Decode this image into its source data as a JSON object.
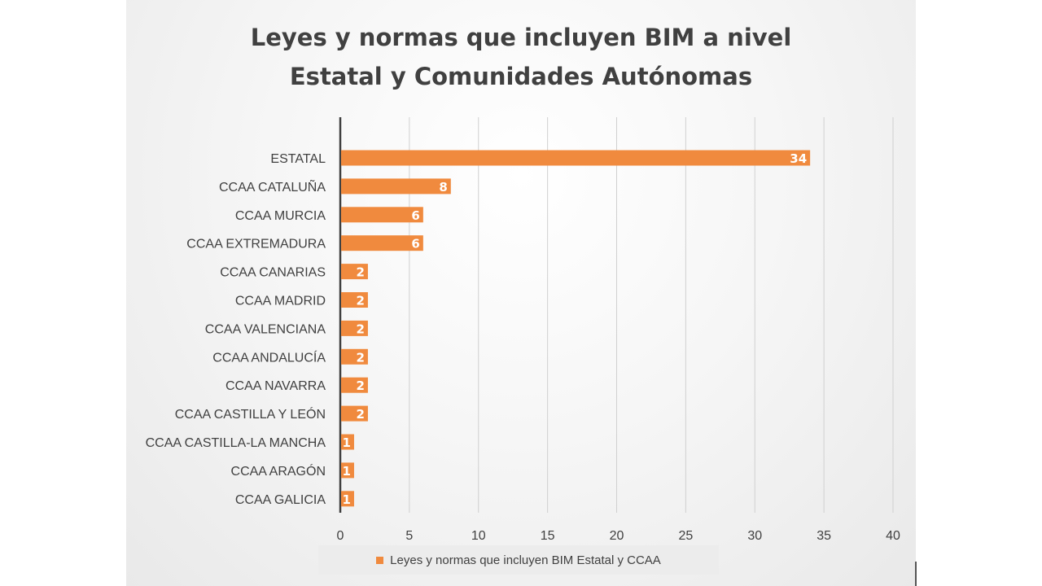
{
  "chart_data": {
    "type": "bar",
    "orientation": "horizontal",
    "title": "Leyes y normas que incluyen BIM a nivel Estatal y Comunidades Autónomas",
    "title_lines": [
      "Leyes y normas que incluyen BIM a nivel",
      "Estatal y Comunidades Autónomas"
    ],
    "categories": [
      "ESTATAL",
      "CCAA CATALUÑA",
      "CCAA MURCIA",
      "CCAA EXTREMADURA",
      "CCAA CANARIAS",
      "CCAA MADRID",
      "CCAA VALENCIANA",
      "CCAA ANDALUCÍA",
      "CCAA NAVARRA",
      "CCAA CASTILLA Y LEÓN",
      "CCAA CASTILLA-LA MANCHA",
      "CCAA ARAGÓN",
      "CCAA GALICIA"
    ],
    "series": [
      {
        "name": "Leyes y normas que incluyen BIM Estatal y CCAA",
        "values": [
          34,
          8,
          6,
          6,
          2,
          2,
          2,
          2,
          2,
          2,
          1,
          1,
          1
        ]
      }
    ],
    "xlim": [
      0,
      40
    ],
    "xticks": [
      0,
      5,
      10,
      15,
      20,
      25,
      30,
      35,
      40
    ],
    "grid": true,
    "legend_position": "bottom",
    "colors": {
      "bar": "#f08a3e",
      "axis": "#404040",
      "grid": "#d0d0d0",
      "text": "#404040",
      "label": "#ffffff"
    }
  }
}
